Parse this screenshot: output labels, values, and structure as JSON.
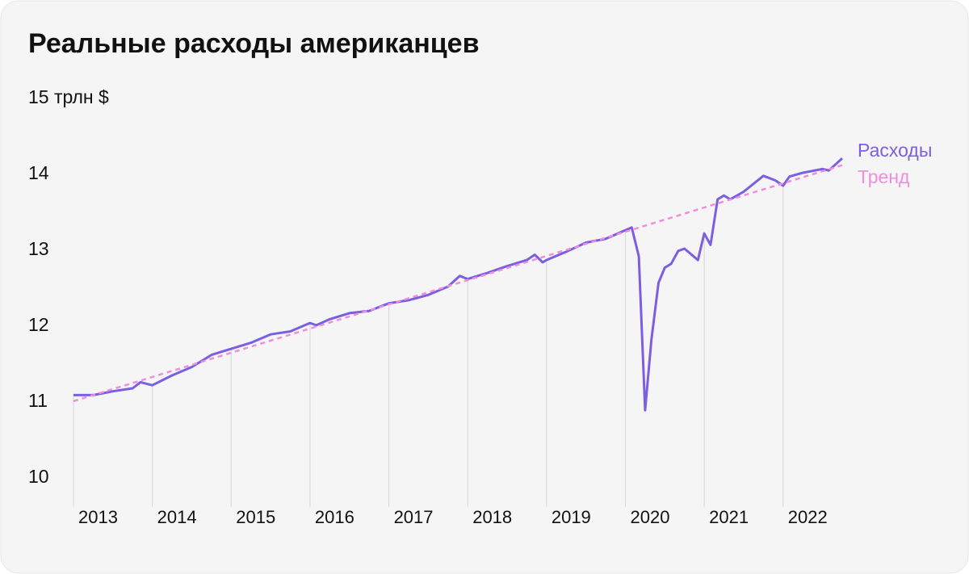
{
  "chart_data": {
    "type": "line",
    "title": "Реальные расходы американцев",
    "x": [
      2013.0,
      2013.25,
      2013.5,
      2013.75,
      2013.85,
      2014.0,
      2014.25,
      2014.5,
      2014.75,
      2015.0,
      2015.25,
      2015.5,
      2015.75,
      2016.0,
      2016.08,
      2016.25,
      2016.5,
      2016.75,
      2017.0,
      2017.25,
      2017.5,
      2017.75,
      2017.9,
      2018.0,
      2018.25,
      2018.5,
      2018.75,
      2018.85,
      2018.95,
      2019.0,
      2019.25,
      2019.5,
      2019.75,
      2019.95,
      2020.08,
      2020.17,
      2020.25,
      2020.33,
      2020.42,
      2020.5,
      2020.58,
      2020.67,
      2020.75,
      2020.83,
      2020.92,
      2021.0,
      2021.08,
      2021.17,
      2021.25,
      2021.33,
      2021.5,
      2021.75,
      2021.9,
      2022.0,
      2022.08,
      2022.25,
      2022.5,
      2022.58,
      2022.75
    ],
    "series": [
      {
        "name": "Расходы",
        "color": "#7a5fe0",
        "values": [
          11.07,
          11.07,
          11.12,
          11.16,
          11.24,
          11.2,
          11.33,
          11.44,
          11.6,
          11.68,
          11.76,
          11.87,
          11.91,
          12.02,
          11.99,
          12.07,
          12.15,
          12.18,
          12.28,
          12.32,
          12.39,
          12.5,
          12.64,
          12.6,
          12.68,
          12.77,
          12.85,
          12.92,
          12.82,
          12.85,
          12.96,
          13.08,
          13.13,
          13.22,
          13.28,
          12.9,
          10.87,
          11.8,
          12.55,
          12.75,
          12.8,
          12.97,
          13.0,
          12.93,
          12.85,
          13.2,
          13.05,
          13.65,
          13.7,
          13.65,
          13.75,
          13.96,
          13.9,
          13.83,
          13.95,
          14.0,
          14.05,
          14.03,
          14.19
        ]
      },
      {
        "name": "Тренд",
        "color": "#f08ede",
        "dashed": true,
        "x": [
          2013.0,
          2022.75
        ],
        "values": [
          10.99,
          14.1
        ]
      }
    ],
    "xlim": [
      2013.0,
      2022.75
    ],
    "xticks": [
      2013,
      2014,
      2015,
      2016,
      2017,
      2018,
      2019,
      2020,
      2021,
      2022
    ],
    "ylim": [
      9.6,
      15
    ],
    "yticks": [
      10,
      11,
      12,
      13,
      14,
      {
        "value": 15,
        "label": "15 трлн $"
      }
    ]
  }
}
